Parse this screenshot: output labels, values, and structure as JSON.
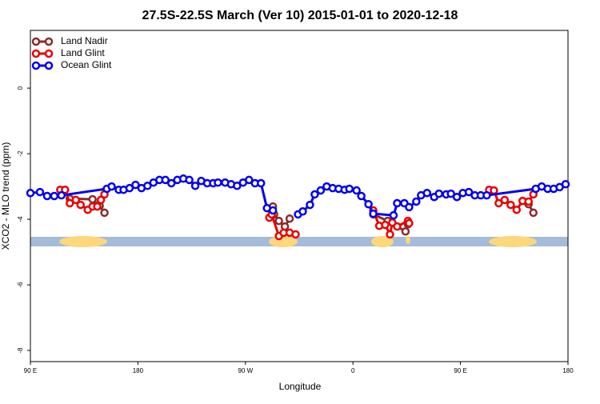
{
  "chart_data": {
    "type": "line",
    "title": "27.5S-22.5S March (Ver 10)   2015-01-01 to 2020-12-18",
    "x_label": "Longitude",
    "y_label": "XCO2 - MLO trend (ppm)",
    "xlim": [
      90,
      540
    ],
    "ylim": [
      -8.34,
      1.76
    ],
    "xticks": [
      {
        "value": 90,
        "label": "90 E"
      },
      180,
      {
        "value": 270,
        "label": "90 W"
      },
      {
        "value": 360,
        "label": "0"
      },
      {
        "value": 450,
        "label": "90 E"
      },
      {
        "value": 540,
        "label": "180"
      }
    ],
    "yticks": [
      0,
      -2,
      -4,
      -6,
      -8
    ],
    "legend": "top-left",
    "series": [
      {
        "name": "Land Nadir",
        "color": "#8b2a2a",
        "x": [
          123,
          142,
          148,
          152,
          null,
          293,
          294,
          298,
          303,
          307,
          null,
          377,
          389,
          404,
          406,
          null,
          507,
          511
        ],
        "values": [
          -3.37,
          -3.39,
          -3.59,
          -3.8,
          null,
          -3.61,
          -3.85,
          -4.05,
          -4.22,
          -3.98,
          null,
          -3.85,
          -4.05,
          -4.37,
          -4.15,
          null,
          -3.54,
          -3.8
        ]
      },
      {
        "name": "Land Glint",
        "color": "#e80000",
        "x": [
          115,
          119,
          123,
          128,
          132,
          138,
          142,
          146,
          149,
          152,
          null,
          290,
          292,
          298,
          302,
          307,
          312,
          null,
          377,
          382,
          387,
          391,
          393,
          397,
          406,
          407,
          null,
          474,
          478,
          482,
          487,
          492,
          497,
          502,
          507,
          511
        ],
        "values": [
          -3.1,
          -3.1,
          -3.51,
          -3.41,
          -3.56,
          -3.71,
          -3.61,
          -3.61,
          -3.41,
          -3.24,
          null,
          -3.95,
          -3.85,
          -4.51,
          -4.41,
          -4.41,
          -4.46,
          null,
          -3.73,
          -4.2,
          -4.17,
          -4.46,
          -4.1,
          -4.22,
          -4.05,
          -4.12,
          null,
          -3.1,
          -3.12,
          -3.51,
          -3.41,
          -3.56,
          -3.71,
          -3.44,
          -3.46,
          -3.24
        ]
      },
      {
        "name": "Ocean Glint",
        "color": "#0000ee",
        "x": [
          90,
          98,
          104,
          110,
          116,
          154,
          158,
          164,
          168,
          173,
          178,
          183,
          188,
          193,
          198,
          203,
          208,
          213,
          218,
          223,
          228,
          233,
          238,
          243,
          247,
          253,
          258,
          263,
          268,
          273,
          278,
          283,
          288,
          293,
          null,
          314,
          318,
          324,
          328,
          333,
          338,
          343,
          348,
          353,
          357,
          363,
          367,
          373,
          377,
          394,
          397,
          403,
          407,
          413,
          417,
          422,
          428,
          432,
          438,
          442,
          447,
          452,
          457,
          462,
          467,
          472,
          513,
          518,
          523,
          528,
          533,
          538
        ],
        "values": [
          -3.2,
          -3.17,
          -3.29,
          -3.29,
          -3.27,
          -3.07,
          -3.0,
          -3.1,
          -3.1,
          -3.05,
          -2.95,
          -3.05,
          -2.98,
          -2.88,
          -2.8,
          -2.8,
          -2.9,
          -2.8,
          -2.76,
          -2.8,
          -2.98,
          -2.83,
          -2.9,
          -2.9,
          -2.88,
          -2.88,
          -2.93,
          -2.98,
          -2.88,
          -2.8,
          -2.9,
          -2.9,
          -3.66,
          -3.73,
          null,
          -3.85,
          -3.76,
          -3.56,
          -3.24,
          -3.12,
          -3.0,
          -3.05,
          -3.07,
          -3.1,
          -3.07,
          -3.12,
          -3.29,
          -3.54,
          -3.83,
          -3.88,
          -3.51,
          -3.51,
          -3.63,
          -3.46,
          -3.27,
          -3.2,
          -3.32,
          -3.22,
          -3.24,
          -3.22,
          -3.32,
          -3.2,
          -3.17,
          -3.27,
          -3.27,
          -3.27,
          -3.07,
          -3.0,
          -3.07,
          -3.07,
          -3.02,
          -2.93
        ]
      }
    ]
  }
}
